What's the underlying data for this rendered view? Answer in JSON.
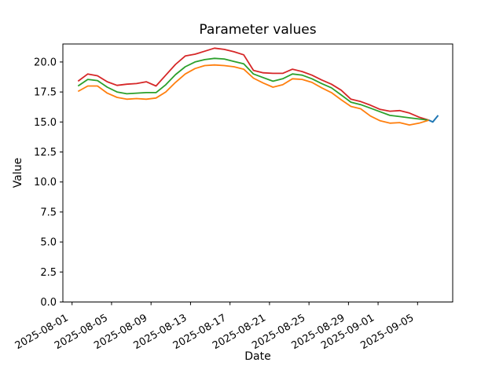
{
  "figure": {
    "title": "Parameter values",
    "xlabel": "Date",
    "ylabel": "Value",
    "background_color": "#ffffff",
    "axes_color": "#000000"
  },
  "chart_data": {
    "type": "line",
    "title": "Parameter values",
    "xlabel": "Date",
    "ylabel": "Value",
    "grid": false,
    "legend": null,
    "ylim": [
      0,
      21.5
    ],
    "y_tick_values": [
      0.0,
      2.5,
      5.0,
      7.5,
      10.0,
      12.5,
      15.0,
      17.5,
      20.0
    ],
    "y_tick_labels": [
      "0.0",
      "2.5",
      "5.0",
      "7.5",
      "10.0",
      "12.5",
      "15.0",
      "17.5",
      "20.0"
    ],
    "x_tick_labels": [
      "2025-08-01",
      "2025-08-05",
      "2025-08-09",
      "2025-08-13",
      "2025-08-17",
      "2025-08-21",
      "2025-08-25",
      "2025-08-29",
      "2025-09-01",
      "2025-09-05"
    ],
    "x_tick_day_index": [
      1,
      5,
      9,
      13,
      17,
      21,
      25,
      29,
      32,
      36
    ],
    "x_dates": [
      "2025-08-01",
      "2025-08-02",
      "2025-08-03",
      "2025-08-04",
      "2025-08-05",
      "2025-08-06",
      "2025-08-07",
      "2025-08-08",
      "2025-08-09",
      "2025-08-10",
      "2025-08-11",
      "2025-08-12",
      "2025-08-13",
      "2025-08-14",
      "2025-08-15",
      "2025-08-16",
      "2025-08-17",
      "2025-08-18",
      "2025-08-19",
      "2025-08-20",
      "2025-08-21",
      "2025-08-22",
      "2025-08-23",
      "2025-08-24",
      "2025-08-25",
      "2025-08-26",
      "2025-08-27",
      "2025-08-28",
      "2025-08-29",
      "2025-08-30",
      "2025-08-31",
      "2025-09-01",
      "2025-09-02",
      "2025-09-03",
      "2025-09-04",
      "2025-09-05",
      "2025-09-06"
    ],
    "series": [
      {
        "name": "red-line",
        "color": "#d62728",
        "values": [
          18.4,
          19.0,
          18.85,
          18.35,
          18.05,
          18.15,
          18.2,
          18.35,
          18.0,
          18.9,
          19.8,
          20.5,
          20.65,
          20.9,
          21.15,
          21.05,
          20.85,
          20.6,
          19.3,
          19.1,
          19.05,
          19.05,
          19.4,
          19.2,
          18.9,
          18.5,
          18.15,
          17.65,
          16.9,
          16.7,
          16.4,
          16.05,
          15.9,
          15.95,
          15.75,
          15.4,
          15.15
        ]
      },
      {
        "name": "green-line",
        "color": "#2ca02c",
        "values": [
          18.0,
          18.55,
          18.45,
          17.9,
          17.5,
          17.35,
          17.4,
          17.45,
          17.45,
          18.1,
          18.95,
          19.6,
          20.0,
          20.2,
          20.3,
          20.25,
          20.05,
          19.85,
          19.0,
          18.7,
          18.4,
          18.6,
          19.0,
          18.9,
          18.6,
          18.2,
          17.85,
          17.25,
          16.65,
          16.45,
          16.15,
          15.85,
          15.55,
          15.45,
          15.35,
          15.25,
          15.15
        ]
      },
      {
        "name": "orange-line",
        "color": "#ff7f0e",
        "values": [
          17.55,
          18.0,
          18.0,
          17.4,
          17.05,
          16.9,
          16.95,
          16.9,
          17.0,
          17.5,
          18.3,
          19.0,
          19.45,
          19.7,
          19.75,
          19.7,
          19.6,
          19.4,
          18.65,
          18.25,
          17.9,
          18.1,
          18.6,
          18.55,
          18.3,
          17.85,
          17.45,
          16.85,
          16.3,
          16.1,
          15.5,
          15.1,
          14.9,
          14.95,
          14.75,
          14.9,
          15.15
        ]
      }
    ],
    "extra_segment": {
      "name": "blue-line",
      "color": "#1f77b4",
      "x_day_index": [
        37.0,
        37.4,
        37.95
      ],
      "values": [
        15.15,
        15.0,
        15.55
      ]
    }
  }
}
